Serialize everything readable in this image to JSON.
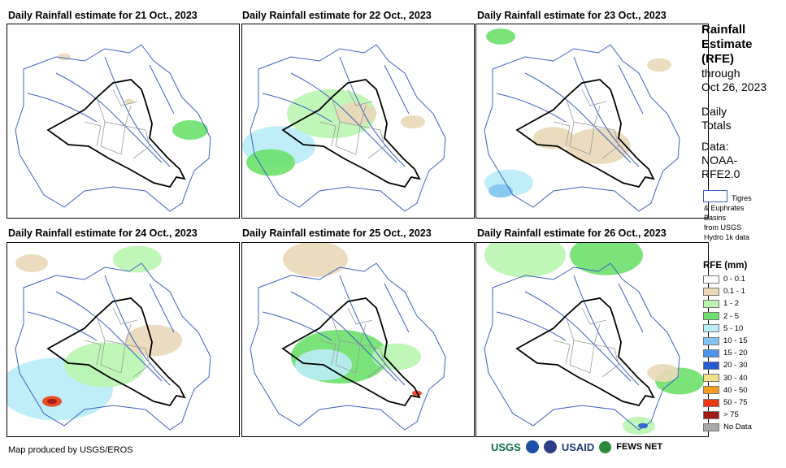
{
  "panels": [
    {
      "title": "Daily Rainfall estimate for 21 Oct., 2023"
    },
    {
      "title": "Daily Rainfall estimate for 22 Oct., 2023"
    },
    {
      "title": "Daily Rainfall estimate for 23 Oct., 2023"
    },
    {
      "title": "Daily Rainfall estimate for 24 Oct., 2023"
    },
    {
      "title": "Daily Rainfall estimate for 25 Oct., 2023"
    },
    {
      "title": "Daily Rainfall estimate for 26 Oct., 2023"
    }
  ],
  "sidebar": {
    "heading_line1": "Rainfall",
    "heading_line2": "Estimate",
    "heading_line3": "(RFE)",
    "through_label": "through",
    "through_date": "Oct 26, 2023",
    "totals_line1": "Daily",
    "totals_line2": "Totals",
    "data_line1": "Data:",
    "data_line2": "NOAA-",
    "data_line3": "RFE2.0",
    "basin_line1": "Tigres",
    "basin_line2": "& Euphrates",
    "basin_line3": "Basins",
    "basin_line4": "from USGS",
    "basin_line5": "Hydro 1k data"
  },
  "legend": {
    "title": "RFE (mm)",
    "items": [
      {
        "label": "0 - 0.1",
        "color": "#ffffff"
      },
      {
        "label": "0.1 - 1",
        "color": "#ead8b8"
      },
      {
        "label": "1 - 2",
        "color": "#b9f5b0"
      },
      {
        "label": "2 - 5",
        "color": "#6be06b"
      },
      {
        "label": "5 - 10",
        "color": "#b9ecf7"
      },
      {
        "label": "10 - 15",
        "color": "#82c3f0"
      },
      {
        "label": "15 - 20",
        "color": "#4d95ec"
      },
      {
        "label": "20 - 30",
        "color": "#2559d6"
      },
      {
        "label": "30 - 40",
        "color": "#f5e08a"
      },
      {
        "label": "40 - 50",
        "color": "#f59c1e"
      },
      {
        "label": "50 - 75",
        "color": "#ee3a14"
      },
      {
        "label": "> 75",
        "color": "#a11a14"
      },
      {
        "label": "No Data",
        "color": "#a8a8a8"
      }
    ]
  },
  "footer": {
    "credit": "Map produced by USGS/EROS",
    "logo_usgs": "USGS",
    "logo_usaid": "USAID",
    "logo_fews": "FEWS NET"
  },
  "colors": {
    "river_basin": "#3c5fc4",
    "country_border": "#000000",
    "province_border": "#999999"
  }
}
